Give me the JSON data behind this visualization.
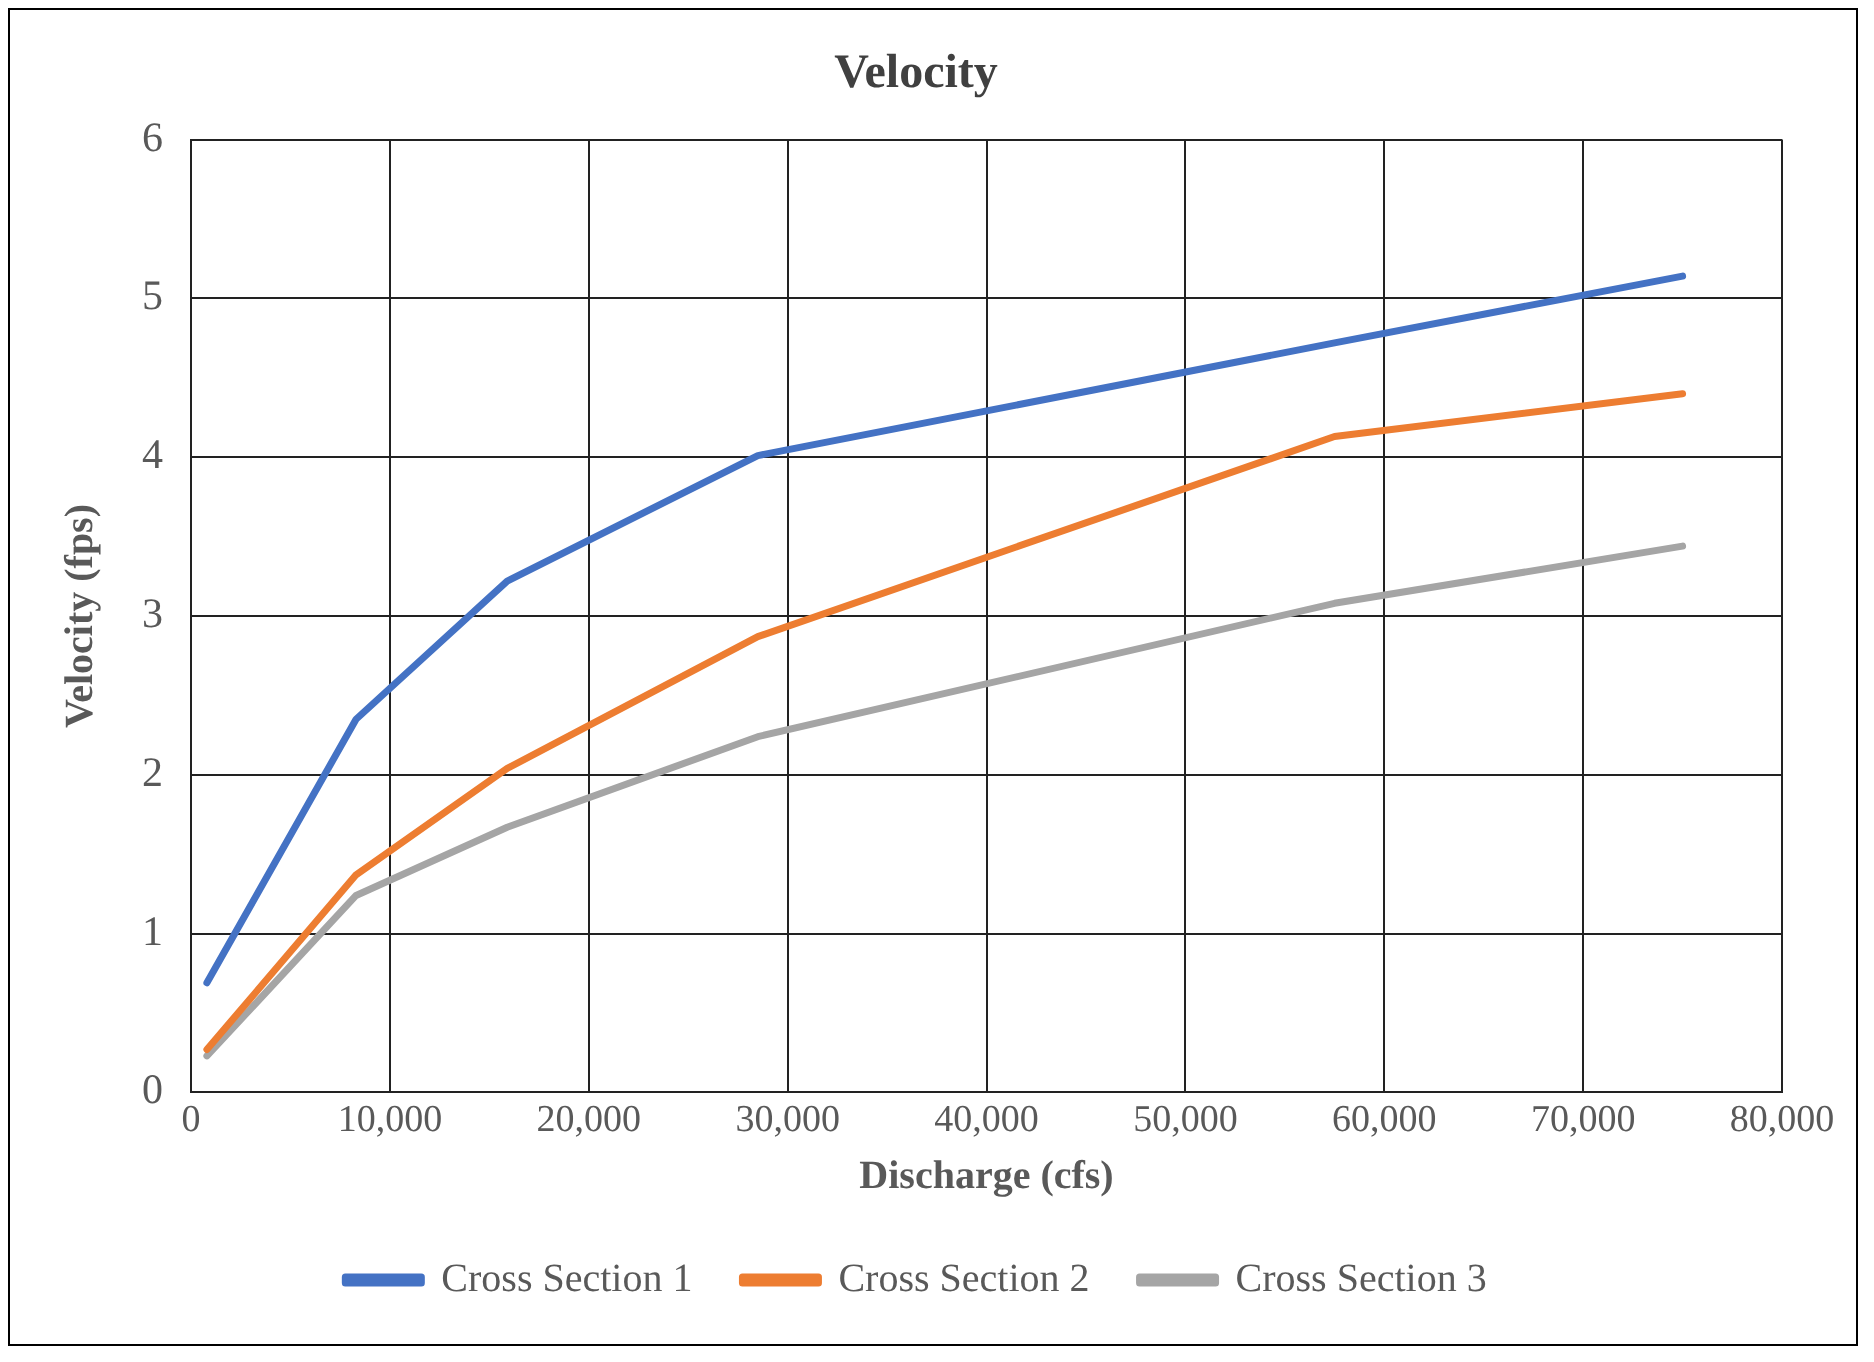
{
  "chart_data": {
    "type": "line",
    "title": "Velocity",
    "xlabel": "Discharge (cfs)",
    "ylabel": "Velocity (fps)",
    "xlim": [
      0,
      80000
    ],
    "xticks": [
      {
        "value": 0,
        "label": "0"
      },
      {
        "value": 10000,
        "label": "10,000"
      },
      {
        "value": 20000,
        "label": "20,000"
      },
      {
        "value": 30000,
        "label": "30,000"
      },
      {
        "value": 40000,
        "label": "40,000"
      },
      {
        "value": 50000,
        "label": "50,000"
      },
      {
        "value": 60000,
        "label": "60,000"
      },
      {
        "value": 70000,
        "label": "70,000"
      },
      {
        "value": 80000,
        "label": "80,000"
      }
    ],
    "ylim": [
      0,
      6
    ],
    "yticks": [
      0,
      1,
      2,
      3,
      4,
      5,
      6
    ],
    "grid": true,
    "legend": "bottom",
    "marker": "none",
    "line_style": "solid",
    "x": [
      800,
      8300,
      15900,
      28500,
      57500,
      75000
    ],
    "series": [
      {
        "name": "Cross Section 1",
        "color": "#4472c4",
        "values": [
          0.69,
          2.35,
          3.22,
          4.01,
          4.72,
          5.14
        ]
      },
      {
        "name": "Cross Section 2",
        "color": "#ed7d31",
        "values": [
          0.27,
          1.37,
          2.04,
          2.87,
          4.13,
          4.4
        ]
      },
      {
        "name": "Cross Section 3",
        "color": "#a5a5a5",
        "values": [
          0.23,
          1.24,
          1.67,
          2.24,
          3.08,
          3.44
        ]
      }
    ]
  }
}
